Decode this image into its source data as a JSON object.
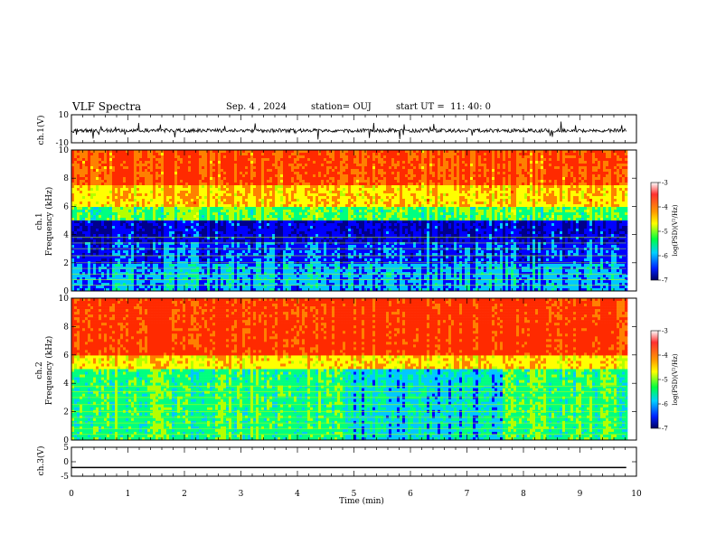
{
  "header": {
    "title": "VLF Spectra",
    "date": "Sep. 4 , 2024",
    "station": "station= OUJ",
    "start": "start UT =  11: 40: 0"
  },
  "colors": {
    "spectrogram": [
      "#00008b",
      "#0000ff",
      "#00c8ff",
      "#00ff80",
      "#b4ff00",
      "#ffff00",
      "#ff8000",
      "#ff2a00"
    ]
  },
  "chart_data": [
    {
      "type": "line",
      "title": "",
      "xlabel": "",
      "ylabel": "ch.1(V)",
      "ylim": [
        -10,
        10
      ],
      "yticks": [
        "10",
        "-10"
      ],
      "series": [
        {
          "values_baseline": 0
        }
      ]
    },
    {
      "type": "heatmap",
      "ylabel_top": "ch.1",
      "ylabel": "Frequency (kHz)",
      "ylim": [
        0,
        10
      ],
      "yticks": [
        "0",
        "2",
        "4",
        "6",
        "8",
        "10"
      ],
      "xlim": [
        0,
        10
      ],
      "colorbar": {
        "label": "log(PSD)(V²/Hz)",
        "range": [
          -7,
          -3
        ],
        "ticks": [
          "-3",
          "-4",
          "-5",
          "-6",
          "-7"
        ]
      }
    },
    {
      "type": "heatmap",
      "ylabel_top": "ch.2",
      "ylabel": "Frequency (kHz)",
      "ylim": [
        0,
        10
      ],
      "yticks": [
        "0",
        "2",
        "4",
        "6",
        "8",
        "10"
      ],
      "xlim": [
        0,
        10
      ],
      "colorbar": {
        "label": "log(PSD)(V²/Hz)",
        "range": [
          -7,
          -3
        ],
        "ticks": [
          "-3",
          "-4",
          "-5",
          "-6",
          "-7"
        ]
      }
    },
    {
      "type": "line",
      "ylabel": "ch.3(V)",
      "ylim": [
        -5,
        5
      ],
      "yticks": [
        "5",
        "0",
        "-5"
      ],
      "series": [
        {
          "values_constant": -2
        }
      ]
    }
  ],
  "xaxis": {
    "label": "Time (min)",
    "ticks": [
      "0",
      "1",
      "2",
      "3",
      "4",
      "5",
      "6",
      "7",
      "8",
      "9",
      "10"
    ]
  }
}
